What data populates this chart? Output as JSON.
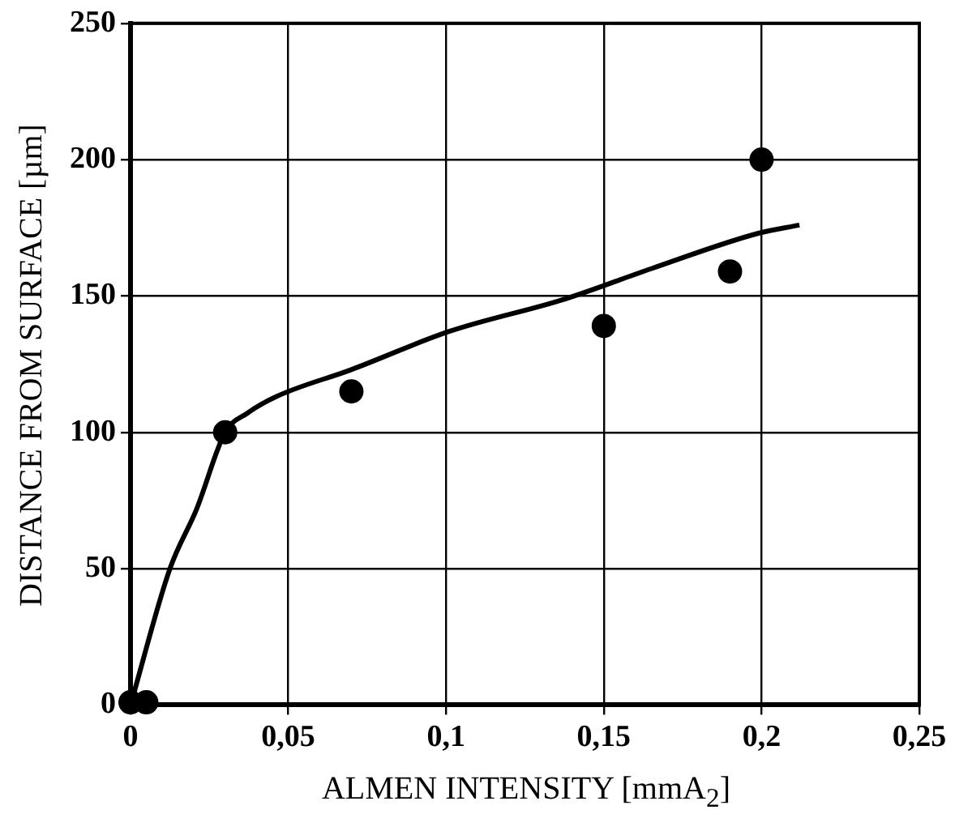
{
  "chart_data": {
    "type": "scatter",
    "xlabel": "ALMEN INTENSITY [mmA$_{2}$]",
    "ylabel": "DISTANCE FROM SURFACE [µm]",
    "xlim": [
      0,
      0.25
    ],
    "xticks": [
      0,
      {
        "value": 0.05,
        "label": "0,05"
      },
      {
        "value": 0.1,
        "label": "0,1"
      },
      {
        "value": 0.15,
        "label": "0,15"
      },
      {
        "value": 0.2,
        "label": "0,2"
      },
      {
        "value": 0.25,
        "label": "0,25"
      }
    ],
    "ylim": [
      0,
      250
    ],
    "yticks": [
      0,
      50,
      100,
      150,
      200,
      250
    ],
    "grid": true,
    "marker": "circle",
    "series": [
      {
        "color": "#000000",
        "x": [
          0,
          0.005,
          0.03,
          0.07,
          0.15,
          0.19,
          0.2
        ],
        "values": [
          1,
          1,
          100,
          115,
          139,
          159,
          200
        ]
      },
      {
        "type": "line",
        "color": "#000000",
        "marker": "none",
        "line_style": "solid",
        "x": [
          0,
          0.0125,
          0.021,
          0.03,
          0.037,
          0.046,
          0.07,
          0.101,
          0.138,
          0.165,
          0.199,
          0.212
        ],
        "values": [
          0,
          50,
          72,
          100,
          107,
          113,
          123,
          137,
          149,
          160,
          173,
          176
        ]
      }
    ]
  }
}
